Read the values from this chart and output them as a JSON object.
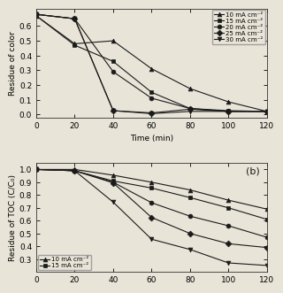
{
  "top": {
    "ylabel": "Residue of color",
    "xlabel": "Time (min)",
    "time": [
      0,
      20,
      40,
      60,
      80,
      100,
      120
    ],
    "series": {
      "10 mA cm⁻²": [
        0.67,
        0.48,
        0.5,
        0.31,
        0.175,
        0.085,
        0.02
      ],
      "15 mA cm⁻²": [
        0.67,
        0.47,
        0.36,
        0.15,
        0.04,
        0.025,
        0.02
      ],
      "20 mA cm⁻²": [
        0.68,
        0.65,
        0.29,
        0.11,
        0.04,
        0.02,
        0.02
      ],
      "25 mA cm⁻²": [
        0.68,
        0.65,
        0.025,
        0.01,
        0.035,
        0.02,
        0.02
      ],
      "30 mA cm⁻²": [
        0.68,
        0.65,
        0.025,
        0.005,
        0.02,
        0.02,
        0.02
      ]
    },
    "markers": [
      "^",
      "s",
      "o",
      "D",
      "v"
    ],
    "ylim": [
      -0.02,
      0.72
    ],
    "yticks": [
      0.0,
      0.1,
      0.2,
      0.3,
      0.4,
      0.5,
      0.6
    ]
  },
  "bottom": {
    "ylabel": "Residue of TOC (C/C₀)",
    "xlabel": "",
    "time": [
      0,
      20,
      40,
      60,
      80,
      100,
      120
    ],
    "series": {
      "10 mA cm⁻²": [
        1.0,
        1.0,
        0.955,
        0.9,
        0.84,
        0.76,
        0.69
      ],
      "15 mA cm⁻²": [
        1.0,
        0.99,
        0.91,
        0.855,
        0.78,
        0.7,
        0.61
      ],
      "20 mA cm⁻²": [
        1.0,
        0.99,
        0.9,
        0.74,
        0.635,
        0.56,
        0.47
      ],
      "25 mA cm⁻²": [
        1.0,
        0.99,
        0.895,
        0.625,
        0.5,
        0.42,
        0.39
      ],
      "30 mA cm⁻²": [
        1.0,
        0.99,
        0.745,
        0.455,
        0.375,
        0.27,
        0.25
      ]
    },
    "markers": [
      "^",
      "s",
      "o",
      "D",
      "v"
    ],
    "ylim": [
      0.2,
      1.05
    ],
    "yticks": [
      0.3,
      0.4,
      0.5,
      0.6,
      0.7,
      0.8,
      0.9,
      1.0
    ],
    "label": "(b)"
  },
  "bg_color": "#e8e4d8",
  "line_color": "#1a1a1a",
  "marker_fill": "#1a1a1a",
  "marker_size": 3.5,
  "font_size": 6.5,
  "linewidth": 0.8
}
